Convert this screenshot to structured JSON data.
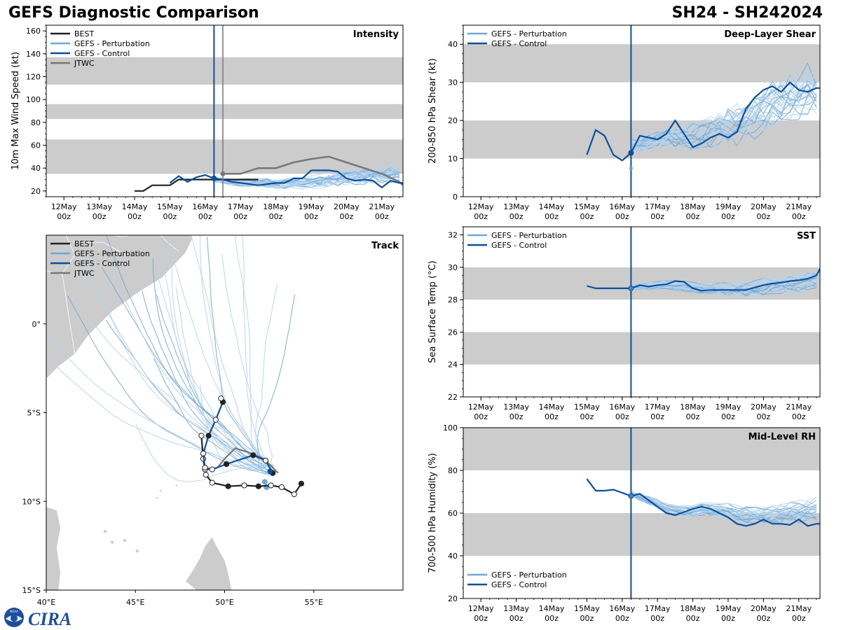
{
  "header": {
    "left_title": "GEFS Diagnostic Comparison",
    "right_title": "SH24 - SH242024"
  },
  "logo": {
    "text": "CIRA",
    "seal_text": "NOAA"
  },
  "time_axis": {
    "start": "12May 00z",
    "ticks": [
      {
        "day": 0,
        "label1": "12May",
        "label2": "00z"
      },
      {
        "day": 1,
        "label1": "13May",
        "label2": "00z"
      },
      {
        "day": 2,
        "label1": "14May",
        "label2": "00z"
      },
      {
        "day": 3,
        "label1": "15May",
        "label2": "00z"
      },
      {
        "day": 4,
        "label1": "16May",
        "label2": "00z"
      },
      {
        "day": 5,
        "label1": "17May",
        "label2": "00z"
      },
      {
        "day": 6,
        "label1": "18May",
        "label2": "00z"
      },
      {
        "day": 7,
        "label1": "19May",
        "label2": "00z"
      },
      {
        "day": 8,
        "label1": "20May",
        "label2": "00z"
      },
      {
        "day": 9,
        "label1": "21May",
        "label2": "00z"
      }
    ],
    "xlim_days": [
      -0.5,
      9.6
    ],
    "init_day": 4.25,
    "jtwc_init_day": 4.5
  },
  "colors": {
    "best": "#222222",
    "perturbation": "#6fa8d6",
    "control": "#0c4f9c",
    "jtwc": "#777777",
    "band": "#cccccc",
    "land": "#cccccc"
  },
  "chart_data": [
    {
      "id": "intensity",
      "type": "line",
      "title": "Intensity",
      "ylabel": "10m Max Wind Speed (kt)",
      "ylim": [
        15,
        165
      ],
      "yticks": [
        20,
        40,
        60,
        80,
        100,
        120,
        140,
        160
      ],
      "bands": [
        [
          35,
          65
        ],
        [
          83,
          96
        ],
        [
          113,
          137
        ]
      ],
      "legend": [
        "BEST",
        "GEFS - Perturbation",
        "GEFS - Control",
        "JTWC"
      ],
      "best": {
        "x": [
          4.0,
          4.25,
          4.5,
          4.75,
          5.0,
          5.25,
          5.5,
          5.75,
          6.0,
          6.25,
          6.5,
          6.75,
          7.0,
          7.25,
          7.5
        ],
        "y": [
          20,
          20,
          25,
          25,
          25,
          30,
          30,
          30,
          30,
          30,
          30,
          30,
          30,
          30,
          30
        ]
      },
      "best_x_offset": -2.0,
      "control": {
        "x": [
          3.0,
          3.25,
          3.5,
          3.75,
          4.0,
          4.25,
          4.5,
          4.75,
          5.0,
          5.25,
          5.5,
          5.75,
          6.0,
          6.25,
          6.5,
          6.75,
          7.0,
          7.25,
          7.5,
          7.75,
          8.0,
          8.25,
          8.5,
          8.75,
          9.0,
          9.25,
          9.5,
          9.6
        ],
        "y": [
          27,
          33,
          28,
          32,
          34,
          31,
          30,
          28,
          27,
          26,
          25,
          26,
          27,
          27,
          31,
          31,
          38,
          38,
          38,
          37,
          31,
          29,
          30,
          29,
          23,
          29,
          27,
          27
        ]
      },
      "jtwc": {
        "x": [
          4.5,
          5.0,
          5.5,
          6.0,
          6.5,
          7.0,
          7.5,
          8.0,
          8.5,
          9.0,
          9.5,
          9.6
        ],
        "y": [
          35,
          35,
          40,
          40,
          45,
          48,
          50,
          45,
          40,
          35,
          28,
          25
        ]
      },
      "perturbation_base": [
        30,
        28,
        27,
        27,
        26,
        27,
        28,
        30,
        32,
        33,
        34,
        34
      ],
      "perturbation_spread": 12
    },
    {
      "id": "shear",
      "type": "line",
      "title": "Deep-Layer Shear",
      "ylabel": "200-850 hPa Shear (kt)",
      "ylim": [
        0,
        45
      ],
      "yticks": [
        0,
        10,
        20,
        30,
        40
      ],
      "bands": [
        [
          10,
          20
        ],
        [
          30,
          40
        ]
      ],
      "legend": [
        "GEFS - Perturbation",
        "GEFS - Control"
      ],
      "control": {
        "x": [
          3.0,
          3.25,
          3.5,
          3.75,
          4.0,
          4.25,
          4.5,
          4.75,
          5.0,
          5.25,
          5.5,
          5.75,
          6.0,
          6.25,
          6.5,
          6.75,
          7.0,
          7.25,
          7.5,
          7.75,
          8.0,
          8.25,
          8.5,
          8.75,
          9.0,
          9.25,
          9.5,
          9.6
        ],
        "y": [
          11,
          17.5,
          16,
          11,
          9.5,
          11.5,
          16,
          15.5,
          15,
          16.5,
          20,
          16.5,
          13,
          14,
          15.5,
          16.5,
          15.5,
          17,
          23,
          26,
          28,
          29,
          27.5,
          30,
          28,
          27.5,
          28.5,
          28.5
        ]
      },
      "perturbation_base": [
        13,
        14,
        15,
        15,
        16,
        17,
        19,
        21,
        24,
        26,
        27
      ],
      "perturbation_spread": 12
    },
    {
      "id": "sst",
      "type": "line",
      "title": "SST",
      "ylabel": "Sea Surface Temp (°C)",
      "ylim": [
        22,
        32.5
      ],
      "yticks": [
        22,
        24,
        26,
        28,
        30,
        32
      ],
      "bands": [
        [
          24,
          26
        ],
        [
          28,
          30
        ]
      ],
      "legend": [
        "GEFS - Perturbation",
        "GEFS - Control"
      ],
      "control": {
        "x": [
          3.0,
          3.25,
          3.5,
          3.75,
          4.0,
          4.25,
          4.5,
          4.75,
          5.0,
          5.25,
          5.5,
          5.75,
          6.0,
          6.25,
          6.5,
          6.75,
          7.0,
          7.25,
          7.5,
          7.75,
          8.0,
          8.25,
          8.5,
          8.75,
          9.0,
          9.25,
          9.5,
          9.6
        ],
        "y": [
          28.85,
          28.7,
          28.7,
          28.7,
          28.7,
          28.7,
          28.9,
          28.8,
          28.9,
          28.95,
          29.15,
          29.1,
          28.7,
          28.55,
          28.6,
          28.6,
          28.6,
          28.6,
          28.6,
          28.75,
          28.9,
          29.0,
          29.05,
          29.15,
          29.2,
          29.3,
          29.5,
          29.9
        ]
      },
      "perturbation_base": [
        28.8,
        28.85,
        28.95,
        28.8,
        28.7,
        28.65,
        28.7,
        28.8,
        28.95,
        29.1,
        29.4
      ],
      "perturbation_spread": 0.9
    },
    {
      "id": "rh",
      "type": "line",
      "title": "Mid-Level RH",
      "ylabel": "700-500 hPa Humidity (%)",
      "ylim": [
        20,
        100
      ],
      "yticks": [
        20,
        40,
        60,
        80,
        100
      ],
      "bands": [
        [
          40,
          60
        ],
        [
          80,
          100
        ]
      ],
      "legend": [
        "GEFS - Perturbation",
        "GEFS - Control"
      ],
      "control": {
        "x": [
          3.0,
          3.25,
          3.5,
          3.75,
          4.0,
          4.25,
          4.5,
          4.75,
          5.0,
          5.25,
          5.5,
          5.75,
          6.0,
          6.25,
          6.5,
          6.75,
          7.0,
          7.25,
          7.5,
          7.75,
          8.0,
          8.25,
          8.5,
          8.75,
          9.0,
          9.25,
          9.5,
          9.6
        ],
        "y": [
          76,
          70.5,
          70.5,
          71,
          69.5,
          68,
          69,
          66,
          63,
          60,
          59,
          60.5,
          62,
          63,
          62,
          60,
          58,
          55,
          54,
          55,
          57,
          55,
          55,
          54.5,
          57,
          54,
          55,
          55
        ]
      },
      "perturbation_base": [
        69,
        66,
        62,
        61,
        62,
        61,
        59,
        59,
        60,
        61,
        62
      ],
      "perturbation_spread": 8
    },
    {
      "id": "track",
      "type": "scatter",
      "title": "Track",
      "lon_range": [
        40,
        60
      ],
      "lat_range": [
        -15,
        5
      ],
      "lon_ticks": [
        {
          "v": 40,
          "t": "40°E"
        },
        {
          "v": 45,
          "t": "45°E"
        },
        {
          "v": 50,
          "t": "50°E"
        },
        {
          "v": 55,
          "t": "55°E"
        }
      ],
      "lat_ticks": [
        {
          "v": 0,
          "t": "0°"
        },
        {
          "v": -5,
          "t": "5°S"
        },
        {
          "v": -10,
          "t": "10°S"
        },
        {
          "v": -15,
          "t": "15°S"
        }
      ],
      "legend": [
        "BEST",
        "GEFS - Perturbation",
        "GEFS - Control",
        "JTWC"
      ],
      "best": [
        [
          54.3,
          -9.0
        ],
        [
          53.9,
          -9.6
        ],
        [
          53.2,
          -9.2
        ],
        [
          52.6,
          -9.1
        ],
        [
          51.9,
          -9.15
        ],
        [
          51.1,
          -9.1
        ],
        [
          50.2,
          -9.15
        ],
        [
          49.3,
          -8.95
        ],
        [
          48.95,
          -8.5
        ],
        [
          48.9,
          -8.2
        ],
        [
          48.8,
          -7.6
        ],
        [
          48.7,
          -6.3
        ]
      ],
      "best_filled": [
        true,
        false,
        false,
        false,
        true,
        false,
        true,
        false,
        false,
        false,
        false,
        false
      ],
      "control": [
        [
          52.7,
          -8.4
        ],
        [
          52.3,
          -7.7
        ],
        [
          51.6,
          -7.4
        ],
        [
          50.1,
          -7.9
        ],
        [
          49.3,
          -8.2
        ],
        [
          48.9,
          -8.1
        ],
        [
          48.8,
          -7.3
        ],
        [
          49.1,
          -6.3
        ],
        [
          49.5,
          -5.4
        ],
        [
          49.9,
          -4.4
        ],
        [
          49.8,
          -4.2
        ]
      ],
      "control_filled": [
        true,
        false,
        true,
        true,
        false,
        false,
        false,
        true,
        false,
        true,
        false
      ],
      "jtwc": [
        [
          53.0,
          -8.4
        ],
        [
          52.6,
          -8.0
        ],
        [
          52.2,
          -7.6
        ],
        [
          51.5,
          -7.3
        ],
        [
          50.6,
          -7.0
        ],
        [
          50.0,
          -7.6
        ],
        [
          49.6,
          -8.1
        ],
        [
          49.3,
          -8.2
        ],
        [
          48.95,
          -8.2
        ]
      ],
      "center": [
        52.55,
        -8.3
      ],
      "perturbation_spread": 1
    }
  ]
}
